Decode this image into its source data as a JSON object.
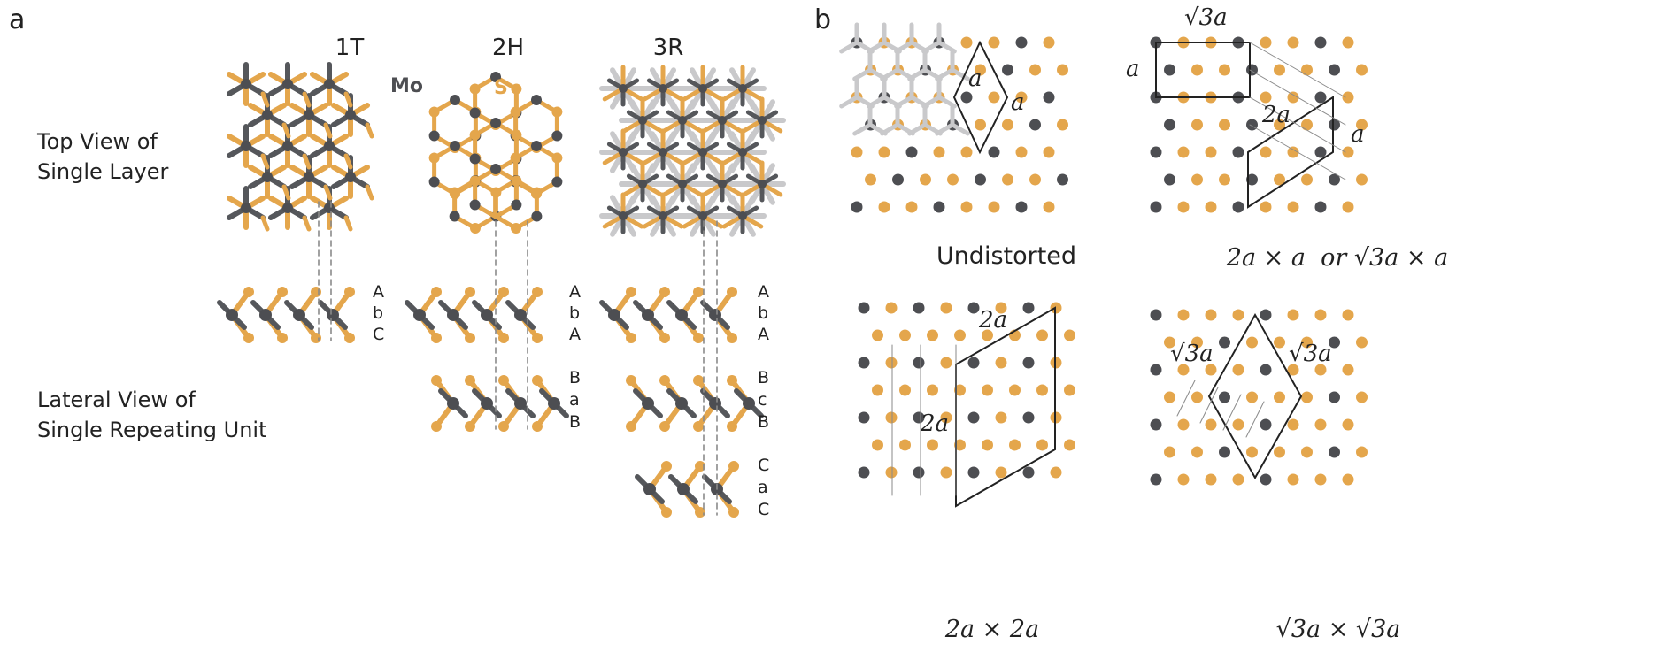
{
  "colors": {
    "mo": "#4d4e52",
    "s": "#e4a64c",
    "bond_dark": "#55575b",
    "bond_light": "#c9c9cb",
    "cell": "#222222",
    "guide": "#8a8a8a"
  },
  "panel_a": {
    "panel_label": "a",
    "phases": [
      "1T",
      "2H",
      "3R"
    ],
    "element_mo": "Mo",
    "element_s": "S",
    "row_top": [
      "Top View of",
      "Single Layer"
    ],
    "row_lateral": [
      "Lateral View of",
      "Single Repeating Unit"
    ],
    "stacking_1T": [
      "A",
      "b",
      "C"
    ],
    "stacking_2H": [
      [
        "A",
        "b",
        "A"
      ],
      [
        "B",
        "a",
        "B"
      ]
    ],
    "stacking_3R": [
      [
        "A",
        "b",
        "A"
      ],
      [
        "B",
        "c",
        "B"
      ],
      [
        "C",
        "a",
        "C"
      ]
    ]
  },
  "panel_b": {
    "panel_label": "b",
    "captions": {
      "undistorted": "Undistorted",
      "c2": "2a × a  or √3a × a",
      "c3": "2a × 2a",
      "c4": "√3a × √3a"
    },
    "labels": {
      "a": "a",
      "two_a": "2a",
      "sqrt3a": "√3a",
      "caption_or": "or"
    }
  }
}
